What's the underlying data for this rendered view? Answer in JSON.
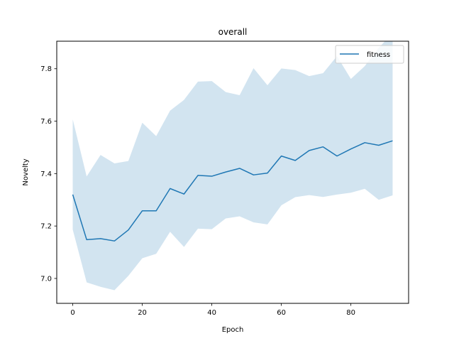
{
  "chart_data": {
    "type": "line",
    "title": "overall",
    "xlabel": "Epoch",
    "ylabel": "Novelty",
    "xlim": [
      -4.6,
      96.6
    ],
    "ylim": [
      6.905,
      7.905
    ],
    "xticks": [
      0,
      20,
      40,
      60,
      80
    ],
    "yticks": [
      7.0,
      7.2,
      7.4,
      7.6,
      7.8
    ],
    "xtick_labels": [
      "0",
      "20",
      "40",
      "60",
      "80"
    ],
    "ytick_labels": [
      "7.0",
      "7.2",
      "7.4",
      "7.6",
      "7.8"
    ],
    "grid": false,
    "legend_position": "top-right",
    "colors": {
      "line": "#1f77b4",
      "band": "#1f77b4"
    },
    "series": [
      {
        "name": "fitness",
        "x": [
          0,
          4,
          8,
          12,
          16,
          20,
          24,
          28,
          32,
          36,
          40,
          44,
          48,
          52,
          56,
          60,
          64,
          68,
          72,
          76,
          80,
          84,
          88,
          92
        ],
        "y": [
          7.32,
          7.148,
          7.152,
          7.143,
          7.185,
          7.258,
          7.258,
          7.343,
          7.322,
          7.393,
          7.39,
          7.406,
          7.42,
          7.395,
          7.402,
          7.467,
          7.45,
          7.488,
          7.502,
          7.467,
          7.494,
          7.518,
          7.508,
          7.525
        ],
        "lower": [
          7.186,
          6.985,
          6.968,
          6.955,
          7.01,
          7.077,
          7.094,
          7.178,
          7.12,
          7.19,
          7.188,
          7.229,
          7.237,
          7.214,
          7.206,
          7.279,
          7.31,
          7.318,
          7.311,
          7.32,
          7.327,
          7.342,
          7.3,
          7.317
        ],
        "upper": [
          7.607,
          7.389,
          7.471,
          7.439,
          7.448,
          7.594,
          7.543,
          7.64,
          7.681,
          7.751,
          7.753,
          7.711,
          7.699,
          7.802,
          7.737,
          7.801,
          7.795,
          7.772,
          7.783,
          7.848,
          7.761,
          7.81,
          7.88,
          7.935
        ]
      }
    ]
  }
}
